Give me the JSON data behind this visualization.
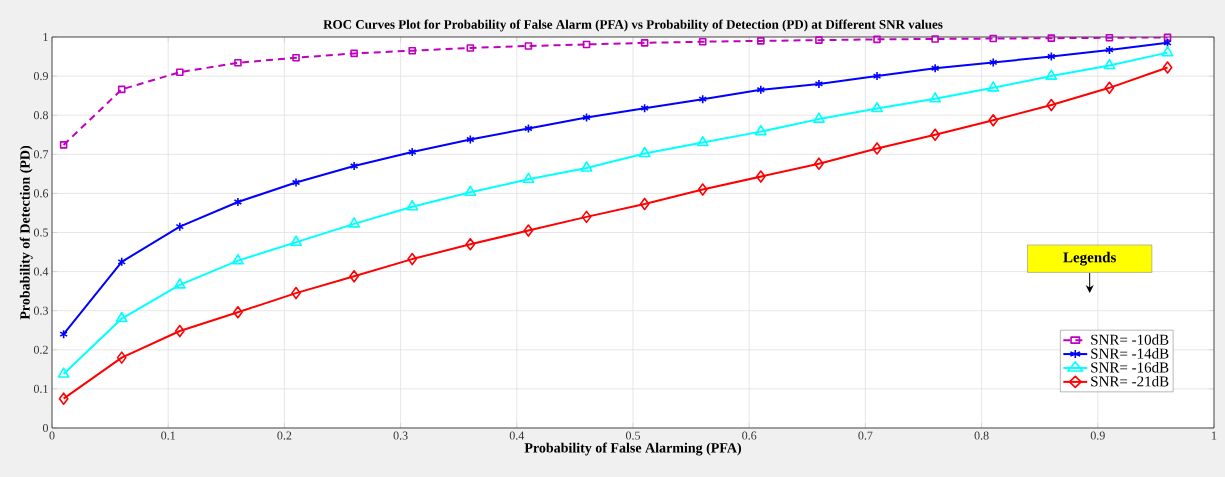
{
  "chart_data": {
    "type": "line",
    "title": "ROC Curves Plot for Probability of False Alarm (PFA) vs Probability of Detection (PD) at Different SNR values",
    "xlabel": "Probability of False Alarming (PFA)",
    "ylabel": "Probability of Detection (PD)",
    "legend_title": "Legends",
    "x": [
      0.01,
      0.06,
      0.11,
      0.16,
      0.21,
      0.26,
      0.31,
      0.36,
      0.41,
      0.46,
      0.51,
      0.56,
      0.61,
      0.66,
      0.71,
      0.76,
      0.81,
      0.86,
      0.91,
      0.96
    ],
    "series": [
      {
        "name": "SNR= -10dB",
        "color": "#c000c0",
        "marker": "square",
        "line_style": "dashed",
        "values": [
          0.724,
          0.866,
          0.91,
          0.934,
          0.947,
          0.958,
          0.965,
          0.972,
          0.977,
          0.981,
          0.985,
          0.988,
          0.99,
          0.992,
          0.994,
          0.995,
          0.996,
          0.997,
          0.998,
          0.999
        ]
      },
      {
        "name": "SNR= -14dB",
        "color": "#0000ff",
        "marker": "cross",
        "line_style": "solid",
        "values": [
          0.24,
          0.425,
          0.515,
          0.578,
          0.628,
          0.67,
          0.706,
          0.738,
          0.766,
          0.794,
          0.818,
          0.841,
          0.865,
          0.88,
          0.9,
          0.92,
          0.935,
          0.95,
          0.967,
          0.985
        ]
      },
      {
        "name": "SNR= -16dB",
        "color": "#00ffff",
        "marker": "triangle",
        "line_style": "solid",
        "values": [
          0.138,
          0.28,
          0.366,
          0.428,
          0.475,
          0.522,
          0.566,
          0.603,
          0.636,
          0.665,
          0.702,
          0.73,
          0.758,
          0.79,
          0.817,
          0.842,
          0.87,
          0.9,
          0.927,
          0.96
        ]
      },
      {
        "name": "SNR= -21dB",
        "color": "#ff0000",
        "marker": "diamond",
        "line_style": "solid",
        "values": [
          0.075,
          0.18,
          0.248,
          0.296,
          0.345,
          0.388,
          0.432,
          0.47,
          0.505,
          0.54,
          0.573,
          0.61,
          0.643,
          0.676,
          0.715,
          0.75,
          0.787,
          0.826,
          0.87,
          0.922
        ]
      }
    ],
    "xlim": [
      0,
      1
    ],
    "ylim": [
      0,
      1
    ],
    "xticks": [
      0,
      0.1,
      0.2,
      0.3,
      0.4,
      0.5,
      0.6,
      0.7,
      0.8,
      0.9,
      1
    ],
    "yticks": [
      0,
      0.1,
      0.2,
      0.3,
      0.4,
      0.5,
      0.6,
      0.7,
      0.8,
      0.9,
      1
    ],
    "grid": true,
    "legend": "bottom right"
  }
}
